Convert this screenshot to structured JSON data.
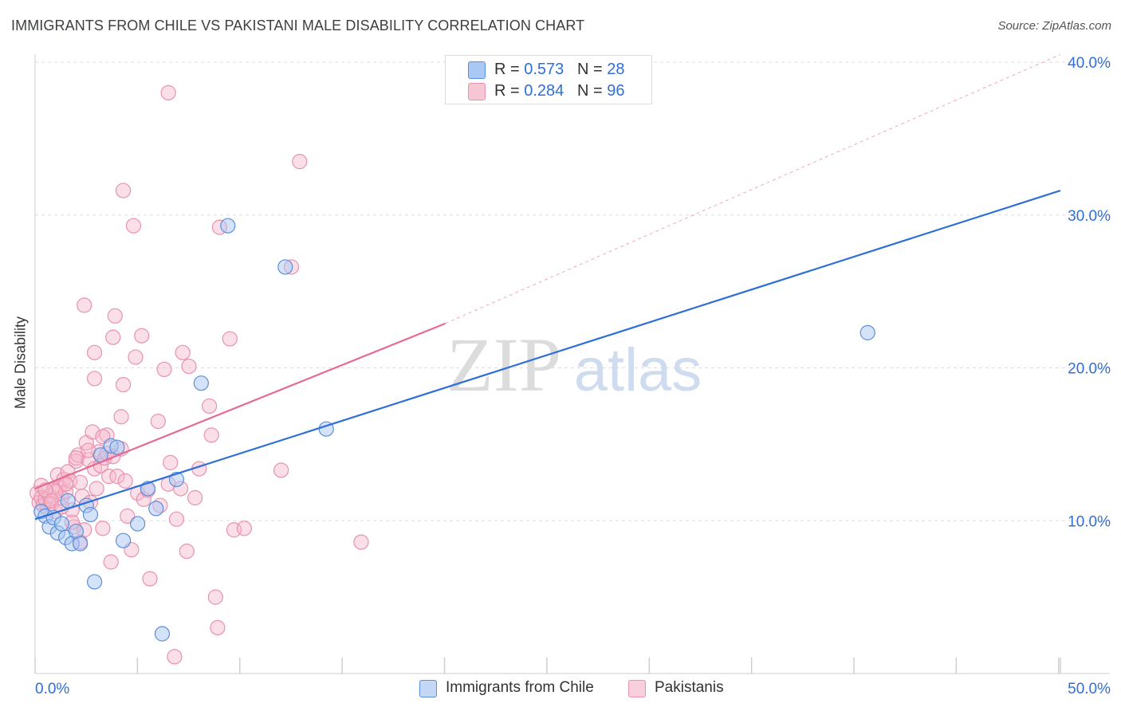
{
  "title": "IMMIGRANTS FROM CHILE VS PAKISTANI MALE DISABILITY CORRELATION CHART",
  "source": "Source: ZipAtlas.com",
  "watermark": {
    "zip": "ZIP",
    "atlas": "atlas"
  },
  "legend": {
    "rows": [
      {
        "r_label": "R =",
        "r_value": "0.573",
        "n_label": "N =",
        "n_value": "28"
      },
      {
        "r_label": "R =",
        "r_value": "0.284",
        "n_label": "N =",
        "n_value": "96"
      }
    ]
  },
  "colors": {
    "chile_fill": "#a9c8f3",
    "chile_stroke": "#5b8fd9",
    "chile_line": "#2f6fd6",
    "pak_fill": "#f7b8cb",
    "pak_stroke": "#e892ad",
    "pak_line": "#e66b94",
    "axis_text": "#2f6fd6",
    "grid": "#dddddd"
  },
  "chart_data": {
    "type": "scatter",
    "title": "IMMIGRANTS FROM CHILE VS PAKISTANI MALE DISABILITY CORRELATION CHART",
    "xlabel": "",
    "ylabel": "Male Disability",
    "xlim": [
      0,
      50
    ],
    "ylim": [
      0,
      40
    ],
    "x_tick_labels": [
      "0.0%",
      "50.0%"
    ],
    "y_ticks": [
      10,
      20,
      30,
      40
    ],
    "y_tick_labels": [
      "10.0%",
      "20.0%",
      "30.0%",
      "40.0%"
    ],
    "grid": true,
    "legend_position": "top-center",
    "series": [
      {
        "name": "Immigrants from Chile",
        "r": 0.573,
        "n": 28,
        "trend": {
          "x": [
            0,
            50
          ],
          "y": [
            10.1,
            31.6
          ],
          "style": "solid"
        },
        "points": [
          [
            0.3,
            10.6
          ],
          [
            0.5,
            10.3
          ],
          [
            0.7,
            9.6
          ],
          [
            0.9,
            10.2
          ],
          [
            1.1,
            9.2
          ],
          [
            1.3,
            9.8
          ],
          [
            1.5,
            8.9
          ],
          [
            1.6,
            11.3
          ],
          [
            1.8,
            8.5
          ],
          [
            2.0,
            9.3
          ],
          [
            2.2,
            8.5
          ],
          [
            2.5,
            11.0
          ],
          [
            2.7,
            10.4
          ],
          [
            2.9,
            6.0
          ],
          [
            3.2,
            14.3
          ],
          [
            3.7,
            14.9
          ],
          [
            4.3,
            8.7
          ],
          [
            5.0,
            9.8
          ],
          [
            5.5,
            12.1
          ],
          [
            5.9,
            10.8
          ],
          [
            6.2,
            2.6
          ],
          [
            6.9,
            12.7
          ],
          [
            8.1,
            19.0
          ],
          [
            9.4,
            29.3
          ],
          [
            12.2,
            26.6
          ],
          [
            14.2,
            16.0
          ],
          [
            40.6,
            22.3
          ],
          [
            4.0,
            14.8
          ]
        ]
      },
      {
        "name": "Pakistanis",
        "r": 0.284,
        "n": 96,
        "trend": {
          "x": [
            0,
            20
          ],
          "y": [
            12.1,
            22.9
          ],
          "style": "solid",
          "extension_to": [
            50,
            40.5
          ]
        },
        "points": [
          [
            0.1,
            11.8
          ],
          [
            0.2,
            11.2
          ],
          [
            0.3,
            12.3
          ],
          [
            0.3,
            11.5
          ],
          [
            0.4,
            11.0
          ],
          [
            0.5,
            11.4
          ],
          [
            0.6,
            10.8
          ],
          [
            0.7,
            11.6
          ],
          [
            0.8,
            11.1
          ],
          [
            0.9,
            12.0
          ],
          [
            1.0,
            10.6
          ],
          [
            1.1,
            13.0
          ],
          [
            1.2,
            12.2
          ],
          [
            1.3,
            11.5
          ],
          [
            1.4,
            12.7
          ],
          [
            1.5,
            11.9
          ],
          [
            1.6,
            13.2
          ],
          [
            1.7,
            12.6
          ],
          [
            1.8,
            10.7
          ],
          [
            1.9,
            9.6
          ],
          [
            2.0,
            13.9
          ],
          [
            2.1,
            14.3
          ],
          [
            2.2,
            12.5
          ],
          [
            2.3,
            11.6
          ],
          [
            2.4,
            9.4
          ],
          [
            2.5,
            15.1
          ],
          [
            2.6,
            14.0
          ],
          [
            2.7,
            11.2
          ],
          [
            2.8,
            15.8
          ],
          [
            2.9,
            13.4
          ],
          [
            3.0,
            12.1
          ],
          [
            3.1,
            14.5
          ],
          [
            3.2,
            13.6
          ],
          [
            3.3,
            9.5
          ],
          [
            3.4,
            14.1
          ],
          [
            3.5,
            15.6
          ],
          [
            3.6,
            12.9
          ],
          [
            3.7,
            7.3
          ],
          [
            3.8,
            14.2
          ],
          [
            4.0,
            12.9
          ],
          [
            4.2,
            14.7
          ],
          [
            4.4,
            12.6
          ],
          [
            4.5,
            10.3
          ],
          [
            4.7,
            8.1
          ],
          [
            5.0,
            11.8
          ],
          [
            5.3,
            11.4
          ],
          [
            5.5,
            12.0
          ],
          [
            6.0,
            16.5
          ],
          [
            6.3,
            19.9
          ],
          [
            6.5,
            12.4
          ],
          [
            6.6,
            13.8
          ],
          [
            6.8,
            1.1
          ],
          [
            6.9,
            10.1
          ],
          [
            7.2,
            21.0
          ],
          [
            7.5,
            20.1
          ],
          [
            8.0,
            13.4
          ],
          [
            8.5,
            17.5
          ],
          [
            8.6,
            15.6
          ],
          [
            8.8,
            5.0
          ],
          [
            8.9,
            3.0
          ],
          [
            9.0,
            29.2
          ],
          [
            9.5,
            21.9
          ],
          [
            9.7,
            9.4
          ],
          [
            10.2,
            9.5
          ],
          [
            12.0,
            13.3
          ],
          [
            12.9,
            33.5
          ],
          [
            12.5,
            26.6
          ],
          [
            15.9,
            8.6
          ],
          [
            6.5,
            38.0
          ],
          [
            4.3,
            31.6
          ],
          [
            4.8,
            29.3
          ],
          [
            2.4,
            24.1
          ],
          [
            3.9,
            23.4
          ],
          [
            3.8,
            22.0
          ],
          [
            5.2,
            22.1
          ],
          [
            2.9,
            21.0
          ],
          [
            4.9,
            20.7
          ],
          [
            2.9,
            19.3
          ],
          [
            4.3,
            18.9
          ],
          [
            4.2,
            16.8
          ],
          [
            3.3,
            15.5
          ],
          [
            2.0,
            14.1
          ],
          [
            1.5,
            12.4
          ],
          [
            1.8,
            9.9
          ],
          [
            5.6,
            6.2
          ],
          [
            7.1,
            12.1
          ],
          [
            7.4,
            8.0
          ],
          [
            7.8,
            11.5
          ],
          [
            2.2,
            8.6
          ],
          [
            1.0,
            11.9
          ],
          [
            0.5,
            12.0
          ],
          [
            0.8,
            11.3
          ],
          [
            1.3,
            10.9
          ],
          [
            2.6,
            14.6
          ],
          [
            3.5,
            14.4
          ],
          [
            6.1,
            11.0
          ]
        ]
      }
    ]
  }
}
